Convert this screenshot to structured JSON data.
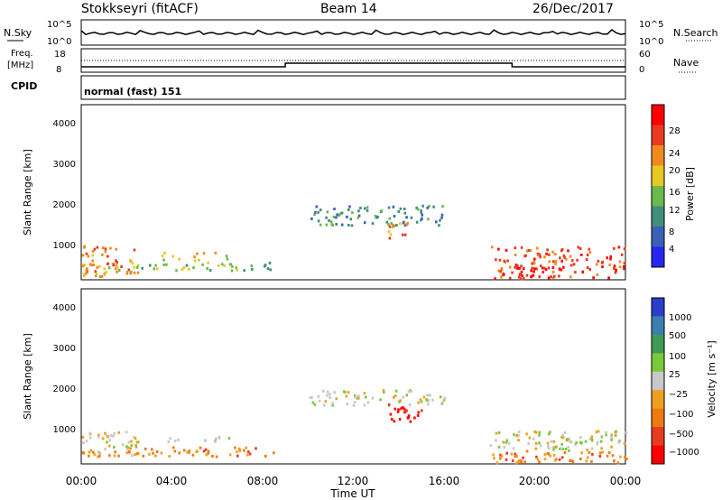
{
  "header": {
    "station": "Stokkseyri (fitACF)",
    "beam": "Beam 14",
    "date": "26/Dec/2017"
  },
  "noise_panel": {
    "left_label": "N.Sky",
    "right_label": "N.Search",
    "left_ticks": [
      "10^5",
      "10^0"
    ],
    "right_ticks": [
      "10^5",
      "10^0"
    ]
  },
  "freq_panel": {
    "left_label_1": "Freq.",
    "left_label_2": "[MHz]",
    "left_ticks": [
      "18",
      "8"
    ],
    "right_label": "Nave",
    "right_ticks": [
      "60",
      "0"
    ]
  },
  "cpid_panel": {
    "label": "CPID",
    "mode": "normal (fast) 151"
  },
  "power_panel": {
    "ylabel": "Slant Range [km]",
    "yticks": [
      "4000",
      "3000",
      "2000",
      "1000"
    ],
    "colorbar_label": "Power [dB]",
    "colorbar_ticks": [
      "28",
      "24",
      "20",
      "16",
      "12",
      "8",
      "4"
    ],
    "colors": [
      "#2626f0",
      "#3a60b8",
      "#3f8f7a",
      "#6cb84a",
      "#e6c823",
      "#f08a1e",
      "#e83a1e",
      "#ff0000"
    ]
  },
  "velocity_panel": {
    "ylabel": "Slant Range [km]",
    "yticks": [
      "4000",
      "3000",
      "2000",
      "1000"
    ],
    "colorbar_label": "Velocity [m s⁻¹]",
    "colorbar_ticks": [
      "1000",
      "500",
      "100",
      "25",
      "−25",
      "−100",
      "−500",
      "−1000"
    ],
    "colors": [
      "#2a3fc8",
      "#3b7fb0",
      "#3f9a56",
      "#7ac93a",
      "#c8c8c8",
      "#f0a020",
      "#f07a10",
      "#e83a1e",
      "#ff0000"
    ]
  },
  "xaxis": {
    "ticks": [
      "00:00",
      "04:00",
      "08:00",
      "12:00",
      "16:00",
      "20:00",
      "00:00"
    ],
    "label": "Time UT"
  },
  "chart_data": {
    "type": "heatmap",
    "title": "Stokkseyri (fitACF)",
    "x_range_hours": [
      0,
      24
    ],
    "y_range_km": [
      180,
      4500
    ],
    "frequency_mhz": [
      {
        "t": 0,
        "f": 10
      },
      {
        "t": 9,
        "f": 12
      },
      {
        "t": 19,
        "f": 10
      }
    ],
    "nave_level": 30,
    "power_blobs": [
      {
        "t0": 0.0,
        "t1": 2.5,
        "r0": 300,
        "r1": 1000,
        "level": 5
      },
      {
        "t0": 0.0,
        "t1": 2.2,
        "r0": 250,
        "r1": 500,
        "level": 4
      },
      {
        "t0": 3.5,
        "t1": 6.5,
        "r0": 650,
        "r1": 850,
        "level": 4
      },
      {
        "t0": 2.0,
        "t1": 8.5,
        "r0": 400,
        "r1": 600,
        "level": 3
      },
      {
        "t0": 10.0,
        "t1": 16.0,
        "r0": 1500,
        "r1": 2000,
        "level": 2
      },
      {
        "t0": 13.5,
        "t1": 14.5,
        "r0": 1200,
        "r1": 1600,
        "level": 5
      },
      {
        "t0": 18.0,
        "t1": 24.0,
        "r0": 200,
        "r1": 1000,
        "level": 6
      },
      {
        "t0": 19.0,
        "t1": 21.5,
        "r0": 200,
        "r1": 500,
        "level": 7
      }
    ],
    "velocity_blobs": [
      {
        "t0": 0.0,
        "t1": 2.5,
        "r0": 400,
        "r1": 1000,
        "level": 4
      },
      {
        "t0": 0.0,
        "t1": 2.2,
        "r0": 250,
        "r1": 500,
        "level": 5
      },
      {
        "t0": 3.5,
        "t1": 6.5,
        "r0": 700,
        "r1": 850,
        "level": 4
      },
      {
        "t0": 2.0,
        "t1": 8.5,
        "r0": 350,
        "r1": 600,
        "level": 6
      },
      {
        "t0": 10.0,
        "t1": 16.0,
        "r0": 1600,
        "r1": 2000,
        "level": 4
      },
      {
        "t0": 13.5,
        "t1": 15.0,
        "r0": 1200,
        "r1": 1700,
        "level": 8
      },
      {
        "t0": 18.0,
        "t1": 24.0,
        "r0": 500,
        "r1": 1000,
        "level": 4
      },
      {
        "t0": 18.0,
        "t1": 24.0,
        "r0": 200,
        "r1": 500,
        "level": 6
      }
    ]
  }
}
